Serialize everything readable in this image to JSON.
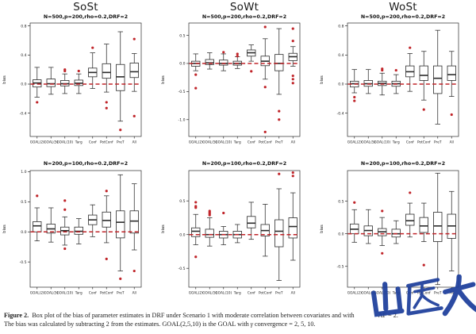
{
  "colors": {
    "box_stroke": "#2b2b2b",
    "axis_text": "#222222",
    "ref_line": "#c0252a",
    "outlier": "#c0252a",
    "watermark_blue": "#1d3e9b"
  },
  "watermark": {
    "text": "山医大"
  },
  "caption": {
    "figure_label": "Figure 2.",
    "line1_start": "Box plot of the bias of parameter estimates in DRF under Scenario 1 with moderate correlation between covariates and with",
    "line1_end": "AF = 2.",
    "line2_start": "The bias was calculated by subtracting 2 from the estimates. GOAL(2,5,10) is the GOAL with ",
    "gamma": "γ",
    "line2_end": " convergence = 2, 5, 10."
  },
  "chart_data": [
    {
      "type": "boxplot",
      "title": "SoSt",
      "subtitle": "N=500,p=200,rho=0.2,DRF=2",
      "ylabel": "bias",
      "ylim": [
        -0.72,
        0.84
      ],
      "yticks": [
        "0.8",
        "0.4",
        "0.0",
        "-0.4"
      ],
      "ref_line": 0,
      "categories": [
        "GOAL(2)",
        "GOAL(5)",
        "GOAL(10)",
        "Targ",
        "Conf",
        "PotConf",
        "PreT",
        "All"
      ],
      "boxes": [
        {
          "lo": -0.18,
          "q1": -0.04,
          "med": 0.015,
          "q3": 0.06,
          "hi": 0.23,
          "out": [
            -0.25
          ]
        },
        {
          "lo": -0.14,
          "q1": -0.035,
          "med": 0.005,
          "q3": 0.07,
          "hi": 0.23,
          "out": []
        },
        {
          "lo": -0.13,
          "q1": -0.025,
          "med": 0.005,
          "q3": 0.05,
          "hi": 0.14,
          "out": [
            0.18,
            0.2
          ]
        },
        {
          "lo": -0.13,
          "q1": -0.02,
          "med": 0.012,
          "q3": 0.055,
          "hi": 0.14,
          "out": [
            0.18
          ]
        },
        {
          "lo": -0.06,
          "q1": 0.1,
          "med": 0.16,
          "q3": 0.22,
          "hi": 0.43,
          "out": [
            0.5
          ]
        },
        {
          "lo": -0.11,
          "q1": 0.08,
          "med": 0.16,
          "q3": 0.28,
          "hi": 0.55,
          "out": [
            -0.25,
            -0.33
          ]
        },
        {
          "lo": -0.51,
          "q1": -0.09,
          "med": 0.1,
          "q3": 0.27,
          "hi": 0.72,
          "out": [
            -0.63
          ]
        },
        {
          "lo": -0.1,
          "q1": 0.09,
          "med": 0.17,
          "q3": 0.29,
          "hi": 0.42,
          "out": [
            0.62,
            -0.44
          ]
        }
      ]
    },
    {
      "type": "boxplot",
      "title": "SoWt",
      "subtitle": "N=500,p=200,rho=0.2,DRF=2",
      "ylabel": "bias",
      "ylim": [
        -1.3,
        0.72
      ],
      "yticks": [
        "0.5",
        "0.0",
        "-0.5",
        "-1.0"
      ],
      "ref_line": 0,
      "categories": [
        "GOAL(2)",
        "GOAL(5)",
        "GOAL(10)",
        "Targ",
        "Conf",
        "PotConf",
        "PreT",
        "All"
      ],
      "boxes": [
        {
          "lo": -0.13,
          "q1": -0.05,
          "med": 0,
          "q3": 0.04,
          "hi": 0.17,
          "out": [
            -0.2,
            -0.44
          ]
        },
        {
          "lo": -0.1,
          "q1": -0.02,
          "med": 0.01,
          "q3": 0.07,
          "hi": 0.19,
          "out": []
        },
        {
          "lo": -0.13,
          "q1": -0.03,
          "med": 0,
          "q3": 0.06,
          "hi": 0.17,
          "out": [
            0.2
          ]
        },
        {
          "lo": -0.09,
          "q1": -0.03,
          "med": 0,
          "q3": 0.04,
          "hi": 0.12,
          "out": [
            0.13,
            0.17
          ]
        },
        {
          "lo": 0.04,
          "q1": 0.13,
          "med": 0.19,
          "q3": 0.24,
          "hi": 0.33,
          "out": [
            -0.14
          ]
        },
        {
          "lo": -0.28,
          "q1": -0.04,
          "med": 0.04,
          "q3": 0.13,
          "hi": 0.44,
          "out": [
            0.65,
            -0.42,
            -1.22
          ]
        },
        {
          "lo": -0.55,
          "q1": -0.13,
          "med": 0,
          "q3": 0.16,
          "hi": 0.62,
          "out": [
            -0.85,
            -1.0
          ]
        },
        {
          "lo": -0.05,
          "q1": 0.05,
          "med": 0.12,
          "q3": 0.18,
          "hi": 0.3,
          "out": [
            0.62,
            0.4,
            -0.22,
            -0.28,
            -0.35
          ]
        }
      ]
    },
    {
      "type": "boxplot",
      "title": "WoSt",
      "subtitle": "N=500,p=200,rho=0.2,DRF=2",
      "ylabel": "bias",
      "ylim": [
        -0.72,
        0.84
      ],
      "yticks": [
        "0.8",
        "0.4",
        "0.0",
        "-0.4"
      ],
      "ref_line": 0,
      "categories": [
        "GOAL(2)",
        "GOAL(5)",
        "GOAL(10)",
        "Targ",
        "Conf",
        "PotConf",
        "PreT",
        "All"
      ],
      "boxes": [
        {
          "lo": -0.12,
          "q1": -0.04,
          "med": 0.005,
          "q3": 0.04,
          "hi": 0.2,
          "out": [
            -0.18,
            -0.23
          ]
        },
        {
          "lo": -0.13,
          "q1": -0.03,
          "med": 0.005,
          "q3": 0.05,
          "hi": 0.2,
          "out": []
        },
        {
          "lo": -0.15,
          "q1": -0.02,
          "med": 0.01,
          "q3": 0.04,
          "hi": 0.15,
          "out": [
            0.19,
            0.21
          ]
        },
        {
          "lo": -0.13,
          "q1": -0.03,
          "med": 0.005,
          "q3": 0.04,
          "hi": 0.13,
          "out": [
            0.19
          ]
        },
        {
          "lo": -0.1,
          "q1": 0.1,
          "med": 0.17,
          "q3": 0.25,
          "hi": 0.42,
          "out": [
            0.5
          ]
        },
        {
          "lo": -0.22,
          "q1": 0.05,
          "med": 0.12,
          "q3": 0.25,
          "hi": 0.45,
          "out": [
            -0.35
          ]
        },
        {
          "lo": -0.55,
          "q1": -0.13,
          "med": 0.08,
          "q3": 0.25,
          "hi": 0.74,
          "out": []
        },
        {
          "lo": -0.17,
          "q1": 0.05,
          "med": 0.13,
          "q3": 0.25,
          "hi": 0.45,
          "out": [
            -0.42
          ]
        }
      ]
    },
    {
      "type": "boxplot",
      "title": "",
      "subtitle": "N=200,p=100,rho=0.2,DRF=2",
      "ylabel": "bias",
      "ylim": [
        -0.92,
        1.02
      ],
      "yticks": [
        "1.0",
        "0.5",
        "0.0",
        "-0.5"
      ],
      "ref_line": 0,
      "categories": [
        "GOAL(2)",
        "GOAL(5)",
        "GOAL(10)",
        "Targ",
        "Conf",
        "PotConf",
        "PreT",
        "All"
      ],
      "boxes": [
        {
          "lo": -0.15,
          "q1": 0,
          "med": 0.1,
          "q3": 0.17,
          "hi": 0.4,
          "out": [
            0.6
          ]
        },
        {
          "lo": -0.17,
          "q1": -0.02,
          "med": 0.05,
          "q3": 0.13,
          "hi": 0.4,
          "out": []
        },
        {
          "lo": -0.22,
          "q1": -0.05,
          "med": 0.02,
          "q3": 0.08,
          "hi": 0.25,
          "out": [
            0.52,
            0.37,
            -0.28
          ]
        },
        {
          "lo": -0.2,
          "q1": -0.04,
          "med": 0.01,
          "q3": 0.08,
          "hi": 0.22,
          "out": []
        },
        {
          "lo": -0.08,
          "q1": 0.12,
          "med": 0.2,
          "q3": 0.28,
          "hi": 0.45,
          "out": []
        },
        {
          "lo": -0.18,
          "q1": 0.08,
          "med": 0.19,
          "q3": 0.33,
          "hi": 0.6,
          "out": [
            0.68,
            -0.45
          ]
        },
        {
          "lo": -0.65,
          "q1": -0.1,
          "med": 0.16,
          "q3": 0.35,
          "hi": 0.95,
          "out": [
            -0.78
          ]
        },
        {
          "lo": -0.3,
          "q1": -0.02,
          "med": 0.18,
          "q3": 0.35,
          "hi": 0.8,
          "out": [
            -0.65
          ]
        }
      ]
    },
    {
      "type": "boxplot",
      "title": "",
      "subtitle": "N=200,p=100,rho=0.2,DRF=2",
      "ylabel": "bias",
      "ylim": [
        -0.78,
        0.95
      ],
      "yticks": [
        "0.5",
        "0.0",
        "-0.5"
      ],
      "ref_line": 0,
      "categories": [
        "GOAL(2)",
        "GOAL(5)",
        "GOAL(10)",
        "Targ",
        "Conf",
        "PotConf",
        "PreT",
        "All"
      ],
      "boxes": [
        {
          "lo": -0.15,
          "q1": -0.03,
          "med": 0.05,
          "q3": 0.1,
          "hi": 0.3,
          "out": [
            0.48,
            0.42,
            0.4,
            -0.33
          ]
        },
        {
          "lo": -0.17,
          "q1": -0.04,
          "med": 0,
          "q3": 0.08,
          "hi": 0.25,
          "out": [
            0.35,
            0.33,
            0.31,
            0.29
          ]
        },
        {
          "lo": -0.15,
          "q1": -0.05,
          "med": 0,
          "q3": 0.05,
          "hi": 0.12,
          "out": [
            0.32
          ]
        },
        {
          "lo": -0.12,
          "q1": -0.05,
          "med": 0,
          "q3": 0.05,
          "hi": 0.15,
          "out": []
        },
        {
          "lo": -0.07,
          "q1": 0.1,
          "med": 0.17,
          "q3": 0.27,
          "hi": 0.48,
          "out": []
        },
        {
          "lo": -0.32,
          "q1": -0.02,
          "med": 0.06,
          "q3": 0.15,
          "hi": 0.45,
          "out": []
        },
        {
          "lo": -0.68,
          "q1": -0.18,
          "med": 0.05,
          "q3": 0.22,
          "hi": 0.68,
          "out": [
            0.9
          ]
        },
        {
          "lo": -0.38,
          "q1": -0.05,
          "med": 0.12,
          "q3": 0.25,
          "hi": 0.62,
          "out": [
            0.92,
            0.87
          ]
        }
      ]
    },
    {
      "type": "boxplot",
      "title": "",
      "subtitle": "N=200,p=100,rho=0.2,DRF=2",
      "ylabel": "bias",
      "ylim": [
        -0.82,
        0.97
      ],
      "yticks": [
        "0.5",
        "0.0",
        "-0.5"
      ],
      "ref_line": 0,
      "categories": [
        "GOAL(2)",
        "GOAL(5)",
        "GOAL(10)",
        "Targ",
        "Conf",
        "PotConf",
        "PreT",
        "All"
      ],
      "boxes": [
        {
          "lo": -0.13,
          "q1": 0,
          "med": 0.07,
          "q3": 0.15,
          "hi": 0.37,
          "out": [
            0.48
          ]
        },
        {
          "lo": -0.15,
          "q1": -0.03,
          "med": 0.05,
          "q3": 0.12,
          "hi": 0.37,
          "out": []
        },
        {
          "lo": -0.18,
          "q1": -0.03,
          "med": 0.03,
          "q3": 0.08,
          "hi": 0.25,
          "out": [
            0.35,
            -0.3
          ]
        },
        {
          "lo": -0.15,
          "q1": -0.05,
          "med": 0,
          "q3": 0.07,
          "hi": 0.2,
          "out": []
        },
        {
          "lo": -0.05,
          "q1": 0.13,
          "med": 0.2,
          "q3": 0.3,
          "hi": 0.47,
          "out": [
            0.63
          ]
        },
        {
          "lo": -0.12,
          "q1": 0.02,
          "med": 0.12,
          "q3": 0.25,
          "hi": 0.47,
          "out": [
            -0.48
          ]
        },
        {
          "lo": -0.78,
          "q1": -0.12,
          "med": 0.12,
          "q3": 0.33,
          "hi": 0.93,
          "out": []
        },
        {
          "lo": -0.57,
          "q1": -0.07,
          "med": 0.12,
          "q3": 0.3,
          "hi": 0.65,
          "out": []
        }
      ]
    }
  ]
}
